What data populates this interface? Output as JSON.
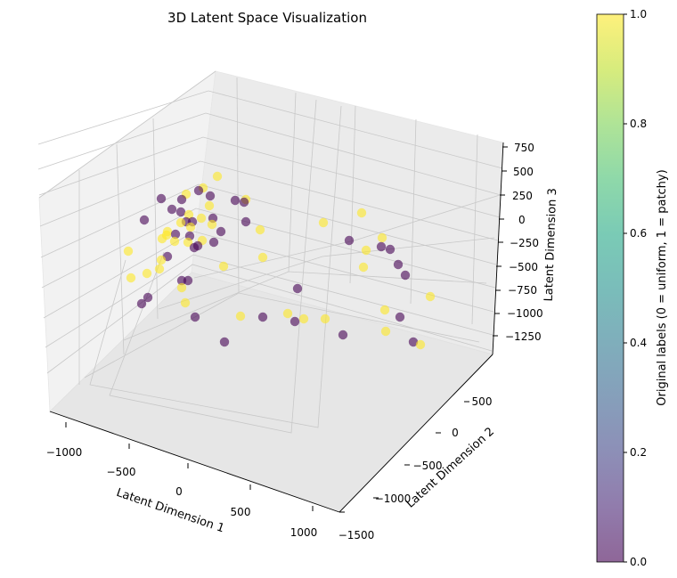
{
  "chart_data": {
    "type": "scatter",
    "title": "3D Latent Space Visualization",
    "xlabel": "Latent Dimension 1",
    "ylabel": "Latent Dimension 2",
    "zlabel": "Latent Dimension 3",
    "xticks": [
      "−1000",
      "−500",
      "0",
      "500",
      "1000"
    ],
    "yticks": [
      "−1500",
      "−1000",
      "−500",
      "0",
      "500"
    ],
    "zticks": [
      "−1250",
      "−1000",
      "−750",
      "−500",
      "−250",
      "0",
      "250",
      "500",
      "750"
    ],
    "colorbar": {
      "label": "Original labels (0 = uniform, 1 = patchy)",
      "ticks": [
        "0.0",
        "0.2",
        "0.4",
        "0.6",
        "0.8",
        "1.0"
      ],
      "colormap": "viridis"
    },
    "colors": {
      "label_0": "#440154",
      "label_1": "#fde725"
    },
    "points": [
      {
        "label": 0,
        "px": [
          181,
          223
        ]
      },
      {
        "label": 0,
        "px": [
          162,
          247
        ]
      },
      {
        "label": 0,
        "px": [
          193,
          235
        ]
      },
      {
        "label": 0,
        "px": [
          203,
          238
        ]
      },
      {
        "label": 0,
        "px": [
          204,
          224
        ]
      },
      {
        "label": 0,
        "px": [
          223,
          214
        ]
      },
      {
        "label": 0,
        "px": [
          236,
          220
        ]
      },
      {
        "label": 0,
        "px": [
          264,
          225
        ]
      },
      {
        "label": 0,
        "px": [
          274,
          227
        ]
      },
      {
        "label": 0,
        "px": [
          239,
          245
        ]
      },
      {
        "label": 0,
        "px": [
          216,
          249
        ]
      },
      {
        "label": 0,
        "px": [
          209,
          249
        ]
      },
      {
        "label": 0,
        "px": [
          197,
          263
        ]
      },
      {
        "label": 0,
        "px": [
          213,
          265
        ]
      },
      {
        "label": 0,
        "px": [
          222,
          276
        ]
      },
      {
        "label": 0,
        "px": [
          218,
          278
        ]
      },
      {
        "label": 0,
        "px": [
          248,
          260
        ]
      },
      {
        "label": 0,
        "px": [
          240,
          272
        ]
      },
      {
        "label": 0,
        "px": [
          276,
          249
        ]
      },
      {
        "label": 0,
        "px": [
          188,
          288
        ]
      },
      {
        "label": 0,
        "px": [
          204,
          315
        ]
      },
      {
        "label": 0,
        "px": [
          211,
          315
        ]
      },
      {
        "label": 0,
        "px": [
          166,
          334
        ]
      },
      {
        "label": 0,
        "px": [
          159,
          341
        ]
      },
      {
        "label": 0,
        "px": [
          219,
          356
        ]
      },
      {
        "label": 0,
        "px": [
          252,
          384
        ]
      },
      {
        "label": 0,
        "px": [
          295,
          356
        ]
      },
      {
        "label": 0,
        "px": [
          331,
          361
        ]
      },
      {
        "label": 0,
        "px": [
          334,
          324
        ]
      },
      {
        "label": 0,
        "px": [
          385,
          376
        ]
      },
      {
        "label": 0,
        "px": [
          392,
          270
        ]
      },
      {
        "label": 0,
        "px": [
          428,
          277
        ]
      },
      {
        "label": 0,
        "px": [
          438,
          280
        ]
      },
      {
        "label": 0,
        "px": [
          447,
          297
        ]
      },
      {
        "label": 0,
        "px": [
          455,
          309
        ]
      },
      {
        "label": 0,
        "px": [
          449,
          356
        ]
      },
      {
        "label": 0,
        "px": [
          464,
          384
        ]
      },
      {
        "label": 1,
        "px": [
          244,
          198
        ]
      },
      {
        "label": 1,
        "px": [
          228,
          211
        ]
      },
      {
        "label": 1,
        "px": [
          209,
          218
        ]
      },
      {
        "label": 1,
        "px": [
          276,
          224
        ]
      },
      {
        "label": 1,
        "px": [
          235,
          231
        ]
      },
      {
        "label": 1,
        "px": [
          212,
          241
        ]
      },
      {
        "label": 1,
        "px": [
          226,
          245
        ]
      },
      {
        "label": 1,
        "px": [
          203,
          250
        ]
      },
      {
        "label": 1,
        "px": [
          238,
          252
        ]
      },
      {
        "label": 1,
        "px": [
          214,
          255
        ]
      },
      {
        "label": 1,
        "px": [
          188,
          260
        ]
      },
      {
        "label": 1,
        "px": [
          187,
          264
        ]
      },
      {
        "label": 1,
        "px": [
          182,
          268
        ]
      },
      {
        "label": 1,
        "px": [
          196,
          271
        ]
      },
      {
        "label": 1,
        "px": [
          227,
          270
        ]
      },
      {
        "label": 1,
        "px": [
          211,
          272
        ]
      },
      {
        "label": 1,
        "px": [
          144,
          282
        ]
      },
      {
        "label": 1,
        "px": [
          181,
          292
        ]
      },
      {
        "label": 1,
        "px": [
          179,
          302
        ]
      },
      {
        "label": 1,
        "px": [
          251,
          299
        ]
      },
      {
        "label": 1,
        "px": [
          165,
          307
        ]
      },
      {
        "label": 1,
        "px": [
          147,
          312
        ]
      },
      {
        "label": 1,
        "px": [
          204,
          323
        ]
      },
      {
        "label": 1,
        "px": [
          208,
          340
        ]
      },
      {
        "label": 1,
        "px": [
          292,
          258
        ]
      },
      {
        "label": 1,
        "px": [
          295,
          289
        ]
      },
      {
        "label": 1,
        "px": [
          270,
          355
        ]
      },
      {
        "label": 1,
        "px": [
          323,
          352
        ]
      },
      {
        "label": 1,
        "px": [
          341,
          358
        ]
      },
      {
        "label": 1,
        "px": [
          365,
          358
        ]
      },
      {
        "label": 1,
        "px": [
          363,
          250
        ]
      },
      {
        "label": 1,
        "px": [
          406,
          239
        ]
      },
      {
        "label": 1,
        "px": [
          429,
          267
        ]
      },
      {
        "label": 1,
        "px": [
          411,
          281
        ]
      },
      {
        "label": 1,
        "px": [
          408,
          300
        ]
      },
      {
        "label": 1,
        "px": [
          483,
          333
        ]
      },
      {
        "label": 1,
        "px": [
          432,
          348
        ]
      },
      {
        "label": 1,
        "px": [
          433,
          372
        ]
      },
      {
        "label": 1,
        "px": [
          472,
          387
        ]
      }
    ]
  }
}
